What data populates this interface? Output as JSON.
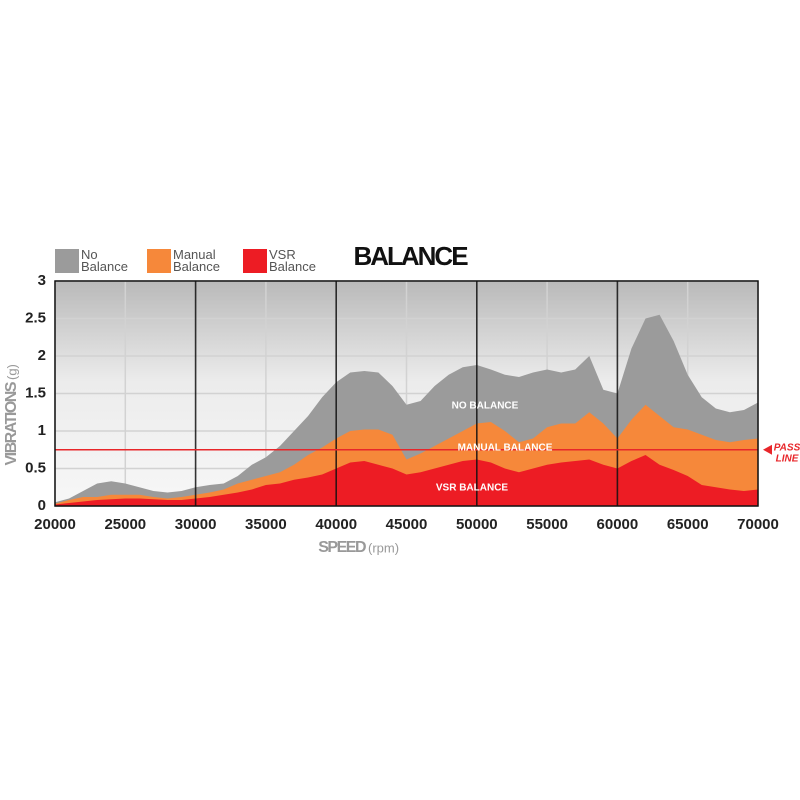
{
  "chart_data": {
    "type": "area",
    "title": "BALANCE",
    "x_label": "SPEED",
    "x_unit": "(rpm)",
    "y_label": "VIBRATIONS",
    "y_unit": "(g)",
    "x": [
      20000,
      21000,
      22000,
      23000,
      24000,
      25000,
      26000,
      27000,
      28000,
      29000,
      30000,
      31000,
      32000,
      33000,
      34000,
      35000,
      36000,
      37000,
      38000,
      39000,
      40000,
      41000,
      42000,
      43000,
      44000,
      45000,
      46000,
      47000,
      48000,
      49000,
      50000,
      51000,
      52000,
      53000,
      54000,
      55000,
      56000,
      57000,
      58000,
      59000,
      60000,
      61000,
      62000,
      63000,
      64000,
      65000,
      66000,
      67000,
      68000,
      69000,
      70000
    ],
    "series": [
      {
        "name": "No Balance",
        "area_label": "NO BALANCE",
        "color": "#9b9b9b",
        "values": [
          0.05,
          0.1,
          0.2,
          0.3,
          0.33,
          0.3,
          0.25,
          0.2,
          0.18,
          0.2,
          0.25,
          0.28,
          0.3,
          0.4,
          0.55,
          0.65,
          0.8,
          1.0,
          1.2,
          1.45,
          1.65,
          1.78,
          1.8,
          1.78,
          1.6,
          1.35,
          1.4,
          1.6,
          1.75,
          1.85,
          1.88,
          1.82,
          1.75,
          1.72,
          1.78,
          1.82,
          1.78,
          1.82,
          2.0,
          1.55,
          1.5,
          2.1,
          2.5,
          2.55,
          2.2,
          1.75,
          1.45,
          1.3,
          1.25,
          1.28,
          1.38
        ]
      },
      {
        "name": "Manual Balance",
        "area_label": "MANUAL BALANCE",
        "color": "#f6883a",
        "values": [
          0.03,
          0.08,
          0.12,
          0.12,
          0.15,
          0.15,
          0.15,
          0.12,
          0.1,
          0.12,
          0.15,
          0.18,
          0.22,
          0.3,
          0.35,
          0.4,
          0.45,
          0.55,
          0.68,
          0.78,
          0.9,
          1.0,
          1.02,
          1.02,
          0.95,
          0.62,
          0.7,
          0.8,
          0.9,
          1.0,
          1.1,
          1.12,
          1.0,
          0.85,
          0.9,
          1.05,
          1.1,
          1.1,
          1.25,
          1.1,
          0.9,
          1.15,
          1.35,
          1.2,
          1.05,
          1.02,
          0.95,
          0.88,
          0.85,
          0.88,
          0.9
        ]
      },
      {
        "name": "VSR Balance",
        "area_label": "VSR BALANCE",
        "color": "#ed1c24",
        "values": [
          0.02,
          0.04,
          0.06,
          0.08,
          0.09,
          0.1,
          0.1,
          0.09,
          0.08,
          0.08,
          0.1,
          0.12,
          0.15,
          0.18,
          0.22,
          0.28,
          0.3,
          0.35,
          0.38,
          0.42,
          0.5,
          0.58,
          0.6,
          0.55,
          0.5,
          0.42,
          0.45,
          0.5,
          0.55,
          0.6,
          0.62,
          0.58,
          0.5,
          0.45,
          0.5,
          0.55,
          0.58,
          0.6,
          0.62,
          0.55,
          0.5,
          0.6,
          0.68,
          0.55,
          0.48,
          0.4,
          0.28,
          0.25,
          0.22,
          0.2,
          0.22
        ]
      }
    ],
    "xlim": [
      20000,
      70000
    ],
    "xticks": [
      20000,
      25000,
      30000,
      35000,
      40000,
      45000,
      50000,
      55000,
      60000,
      65000,
      70000
    ],
    "ylim": [
      0,
      3
    ],
    "yticks": [
      0,
      0.5,
      1,
      1.5,
      2,
      2.5,
      3
    ],
    "grid": true,
    "pass_line": {
      "value": 0.75,
      "color": "#e8262a",
      "label_lines": [
        "PASS",
        "LINE"
      ]
    }
  }
}
